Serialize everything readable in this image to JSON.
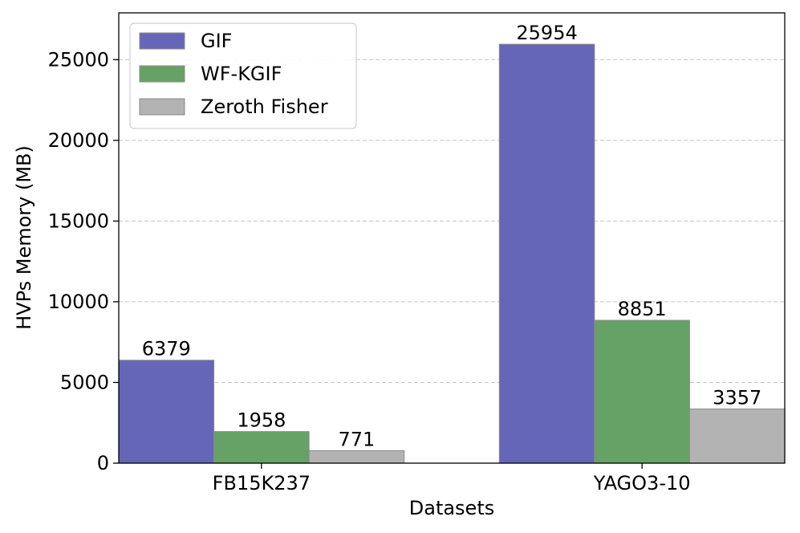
{
  "chart_data": {
    "type": "bar",
    "categories": [
      "FB15K237",
      "YAGO3-10"
    ],
    "series": [
      {
        "name": "GIF",
        "values": [
          6379,
          25954
        ],
        "color": "#6666b8"
      },
      {
        "name": "WF-KGIF",
        "values": [
          1958,
          8851
        ],
        "color": "#66a266"
      },
      {
        "name": "Zeroth Fisher",
        "values": [
          771,
          3357
        ],
        "color": "#b3b3b3"
      }
    ],
    "xlabel": "Datasets",
    "ylabel": "HVPs Memory (MB)",
    "ylim": [
      0,
      27900
    ],
    "yticks": [
      0,
      5000,
      10000,
      15000,
      20000,
      25000
    ],
    "grid": "y-dashed",
    "legend": "top-left",
    "data_labels": true
  }
}
